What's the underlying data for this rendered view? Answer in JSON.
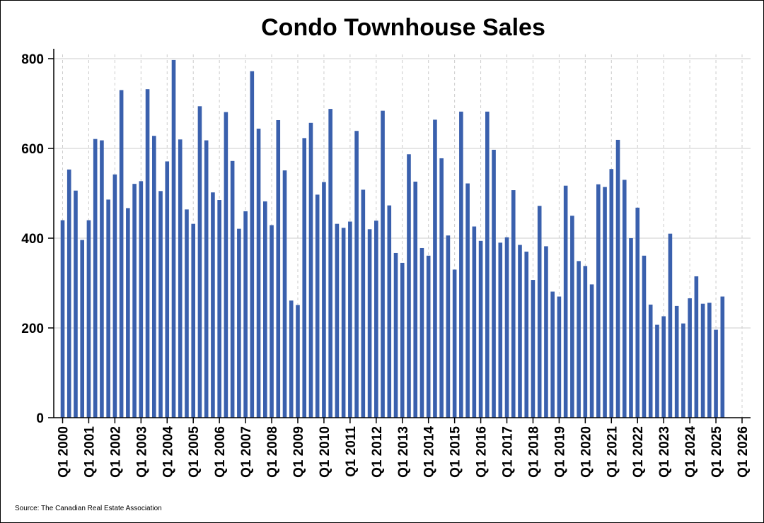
{
  "colors": {
    "bar": "#3a60ad",
    "grid": "#cccccc",
    "axis": "#000000"
  },
  "source": "Source: The Canadian Real Estate Association",
  "chart_data": {
    "type": "bar",
    "title": "Condo Townhouse Sales",
    "xlabel": "",
    "ylabel": "",
    "ylim": [
      0,
      800
    ],
    "yticks": [
      0,
      200,
      400,
      600,
      800
    ],
    "xtick_labels": [
      "Q1 2000",
      "Q1 2001",
      "Q1 2002",
      "Q1 2003",
      "Q1 2004",
      "Q1 2005",
      "Q1 2006",
      "Q1 2007",
      "Q1 2008",
      "Q1 2009",
      "Q1 2010",
      "Q1 2011",
      "Q1 2012",
      "Q1 2013",
      "Q1 2014",
      "Q1 2015",
      "Q1 2016",
      "Q1 2017",
      "Q1 2018",
      "Q1 2019",
      "Q1 2020",
      "Q1 2021",
      "Q1 2022",
      "Q1 2023",
      "Q1 2024",
      "Q1 2025",
      "Q1 2026"
    ],
    "grid": true,
    "legend": "none",
    "start_period": "Q1 2000",
    "frequency": "quarterly",
    "values": [
      440,
      553,
      506,
      396,
      440,
      621,
      618,
      486,
      542,
      730,
      467,
      521,
      527,
      732,
      628,
      505,
      571,
      797,
      620,
      464,
      432,
      694,
      618,
      502,
      485,
      681,
      572,
      421,
      460,
      772,
      644,
      482,
      429,
      663,
      551,
      261,
      251,
      623,
      657,
      497,
      525,
      688,
      432,
      423,
      437,
      639,
      508,
      420,
      439,
      684,
      473,
      367,
      345,
      587,
      526,
      378,
      361,
      664,
      578,
      406,
      330,
      682,
      522,
      426,
      394,
      682,
      597,
      390,
      402,
      507,
      385,
      370,
      307,
      472,
      382,
      281,
      270,
      517,
      450,
      349,
      338,
      297,
      520,
      514,
      554,
      619,
      530,
      400,
      468,
      361,
      252,
      207,
      226,
      410,
      249,
      210,
      266,
      315,
      254,
      256,
      196,
      270
    ]
  }
}
